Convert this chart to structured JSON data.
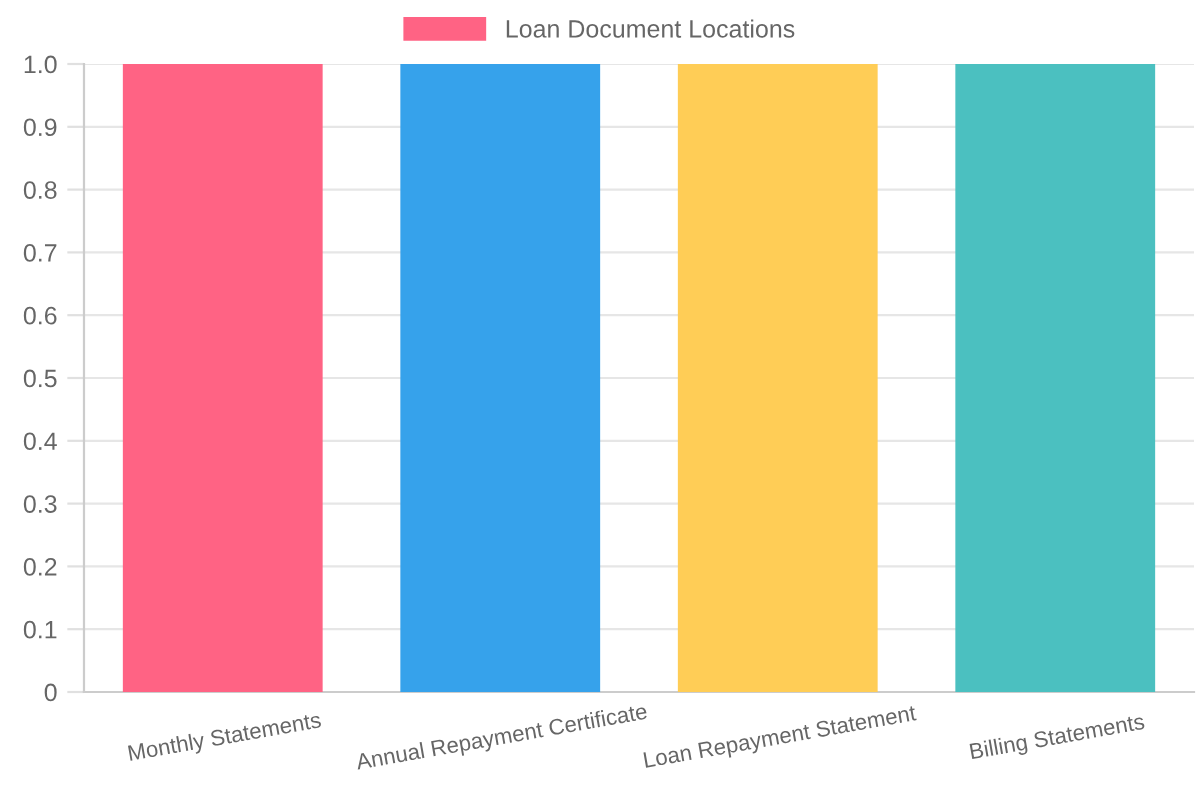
{
  "chart_data": {
    "type": "bar",
    "categories": [
      "Monthly Statements",
      "Annual Repayment Certificate",
      "Loan Repayment Statement",
      "Billing Statements"
    ],
    "series": [
      {
        "name": "Loan Document Locations",
        "color": "#ff6384",
        "colors": [
          "#ff6384",
          "#36a2eb",
          "#ffcd56",
          "#4bc0c0"
        ],
        "values": [
          1.0,
          1.0,
          1.0,
          1.0
        ]
      }
    ],
    "ylim": [
      0,
      1.0
    ],
    "yticks": [
      0,
      0.1,
      0.2,
      0.3,
      0.4,
      0.5,
      0.6,
      0.7,
      0.8,
      0.9,
      {
        "value": 1.0,
        "label": "1.0"
      }
    ],
    "grid": true,
    "legend": "top"
  }
}
